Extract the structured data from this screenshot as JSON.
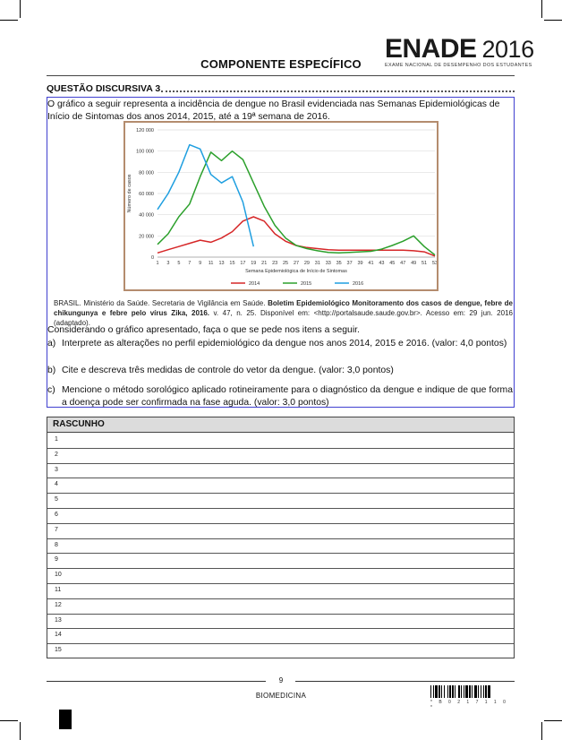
{
  "header": {
    "logo": "ENADE",
    "year": "2016",
    "subtitle": "EXAME NACIONAL DE DESEMPENHO DOS ESTUDANTES"
  },
  "section_title": "COMPONENTE ESPECÍFICO",
  "question": {
    "label": "QUESTÃO DISCURSIVA 3",
    "intro": "O gráfico a seguir representa a incidência de dengue no Brasil evidenciada nas Semanas Epidemiológicas de Início de Sintomas dos anos 2014, 2015, até a 19ª semana de 2016.",
    "source_prefix": "BRASIL. Ministério da Saúde. Secretaria de Vigilância em Saúde. ",
    "source_bold": "Boletim Epidemiológico Monitoramento dos casos de dengue, febre de chikungunya e febre pelo vírus Zika, 2016.",
    "source_suffix": " v. 47, n. 25. Disponível em: <http://portalsaude.saude.gov.br>. Acesso em: 29 jun. 2016 (adaptado).",
    "consider": "Considerando o gráfico apresentado, faça o que se pede nos itens a seguir.",
    "items": [
      {
        "letter": "a)",
        "text": "Interprete as alterações no perfil epidemiológico da dengue nos anos 2014, 2015 e 2016. (valor: 4,0 pontos)"
      },
      {
        "letter": "b)",
        "text": "Cite e descreva três medidas de controle do vetor da dengue. (valor: 3,0 pontos)"
      },
      {
        "letter": "c)",
        "text": "Mencione o método sorológico aplicado rotineiramente para o diagnóstico da dengue e indique de que forma a doença pode ser confirmada na fase aguda. (valor: 3,0 pontos)"
      }
    ]
  },
  "chart_data": {
    "type": "line",
    "title": "",
    "xlabel": "Semana Epidemiológica de Início de Sintomas",
    "ylabel": "Número de casos",
    "x_ticks": [
      "1",
      "3",
      "5",
      "7",
      "9",
      "11",
      "13",
      "15",
      "17",
      "19",
      "21",
      "23",
      "25",
      "27",
      "29",
      "31",
      "33",
      "35",
      "37",
      "39",
      "41",
      "43",
      "45",
      "47",
      "49",
      "51",
      "53"
    ],
    "y_ticks": [
      "0",
      "20 000",
      "40 000",
      "60 000",
      "80 000",
      "100 000",
      "120 000"
    ],
    "ylim": [
      0,
      120000
    ],
    "xlim": [
      1,
      53
    ],
    "grid": "horizontal",
    "legend_position": "bottom",
    "series": [
      {
        "name": "2014",
        "color": "#d62728",
        "x": [
          1,
          3,
          5,
          7,
          9,
          11,
          13,
          15,
          17,
          19,
          21,
          23,
          25,
          27,
          29,
          31,
          33,
          35,
          37,
          39,
          41,
          43,
          45,
          47,
          49,
          51,
          53
        ],
        "y": [
          4000,
          7000,
          10000,
          13000,
          16000,
          14000,
          18000,
          24000,
          34000,
          38000,
          34000,
          22000,
          15000,
          11000,
          9000,
          8000,
          7000,
          6500,
          6500,
          6500,
          6500,
          6500,
          6500,
          6500,
          6000,
          5000,
          1000
        ]
      },
      {
        "name": "2015",
        "color": "#2ca02c",
        "x": [
          1,
          3,
          5,
          7,
          9,
          11,
          13,
          15,
          17,
          19,
          21,
          23,
          25,
          27,
          29,
          31,
          33,
          35,
          37,
          39,
          41,
          43,
          45,
          47,
          49,
          51,
          53
        ],
        "y": [
          12000,
          22000,
          38000,
          50000,
          76000,
          99000,
          91000,
          100000,
          92000,
          70000,
          48000,
          30000,
          18000,
          11000,
          8000,
          6000,
          4500,
          4000,
          4500,
          5000,
          5500,
          7500,
          11000,
          15000,
          20000,
          10000,
          2000
        ]
      },
      {
        "name": "2016",
        "color": "#1f9fe0",
        "x": [
          1,
          3,
          5,
          7,
          9,
          11,
          13,
          15,
          17,
          19
        ],
        "y": [
          45000,
          60000,
          80000,
          106000,
          102000,
          78000,
          70000,
          76000,
          52000,
          10000
        ]
      }
    ]
  },
  "rascunho": {
    "title": "RASCUNHO",
    "lines": [
      "1",
      "2",
      "3",
      "4",
      "5",
      "6",
      "7",
      "8",
      "9",
      "10",
      "11",
      "12",
      "13",
      "14",
      "15"
    ]
  },
  "footer": {
    "page": "9",
    "course": "BIOMEDICINA",
    "barcode_text": "* B 0 2 1 7 1 1 0 *"
  }
}
